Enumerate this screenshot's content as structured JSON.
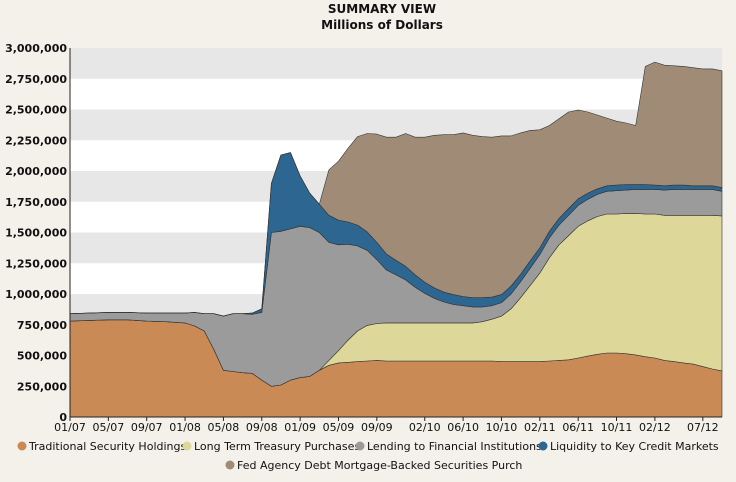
{
  "chart_data": {
    "type": "area",
    "stacked": true,
    "title": "SUMMARY VIEW",
    "subtitle": "Millions of Dollars",
    "x_tick_labels": [
      "01/07",
      "05/07",
      "09/07",
      "01/08",
      "05/08",
      "09/08",
      "01/09",
      "05/09",
      "09/09",
      "02/10",
      "06/10",
      "10/10",
      "02/11",
      "06/11",
      "10/11",
      "02/12",
      "07/12"
    ],
    "y_tick_labels": [
      "3,000,000",
      "2,750,000",
      "2,500,000",
      "2,250,000",
      "2,000,000",
      "1,750,000",
      "1,500,000",
      "1,250,000",
      "1,000,000",
      "750,000",
      "500,000",
      "250,000",
      "0"
    ],
    "ylim": [
      0,
      3000000
    ],
    "grid": true,
    "legend_position": "bottom",
    "colors": {
      "traditional": "#c98a55",
      "treasury": "#ddd79a",
      "lending": "#9b9b9b",
      "liquidity": "#2d6690",
      "agency": "#a08b77",
      "plot_band": "#e7e7e7",
      "background": "#f4f1ea"
    },
    "x_months": [
      "2007-01",
      "2007-03",
      "2007-05",
      "2007-07",
      "2007-09",
      "2007-11",
      "2008-01",
      "2008-02",
      "2008-03",
      "2008-04",
      "2008-05",
      "2008-06",
      "2008-07",
      "2008-08",
      "2008-09",
      "2008-10",
      "2008-11",
      "2008-12",
      "2009-01",
      "2009-02",
      "2009-03",
      "2009-04",
      "2009-05",
      "2009-06",
      "2009-07",
      "2009-08",
      "2009-09",
      "2009-10",
      "2009-11",
      "2009-12",
      "2010-01",
      "2010-02",
      "2010-03",
      "2010-04",
      "2010-05",
      "2010-06",
      "2010-07",
      "2010-08",
      "2010-09",
      "2010-10",
      "2010-11",
      "2010-12",
      "2011-01",
      "2011-02",
      "2011-03",
      "2011-04",
      "2011-05",
      "2011-06",
      "2011-07",
      "2011-08",
      "2011-09",
      "2011-10",
      "2011-11",
      "2011-12",
      "2012-01",
      "2012-02",
      "2012-03",
      "2012-04",
      "2012-05",
      "2012-06",
      "2012-07",
      "2012-08",
      "2012-09"
    ],
    "series": [
      {
        "name": "Traditional Security Holdings",
        "key": "traditional",
        "values": [
          780000,
          785000,
          790000,
          790000,
          780000,
          775000,
          765000,
          740000,
          700000,
          550000,
          380000,
          370000,
          360000,
          355000,
          300000,
          250000,
          260000,
          300000,
          320000,
          330000,
          380000,
          420000,
          440000,
          445000,
          450000,
          455000,
          460000,
          455000,
          455000,
          455000,
          455000,
          455000,
          455000,
          455000,
          455000,
          455000,
          455000,
          455000,
          455000,
          450000,
          450000,
          450000,
          450000,
          450000,
          455000,
          460000,
          465000,
          480000,
          495000,
          510000,
          520000,
          520000,
          515000,
          505000,
          490000,
          480000,
          460000,
          450000,
          440000,
          430000,
          410000,
          390000,
          375000
        ]
      },
      {
        "name": "Long Term Treasury Purchases",
        "key": "treasury",
        "values": [
          0,
          0,
          0,
          0,
          0,
          0,
          0,
          0,
          0,
          0,
          0,
          0,
          0,
          0,
          0,
          0,
          0,
          0,
          0,
          0,
          0,
          40000,
          100000,
          180000,
          250000,
          290000,
          300000,
          310000,
          310000,
          310000,
          310000,
          310000,
          310000,
          310000,
          310000,
          310000,
          310000,
          320000,
          340000,
          370000,
          430000,
          520000,
          620000,
          720000,
          840000,
          940000,
          1010000,
          1070000,
          1100000,
          1120000,
          1130000,
          1130000,
          1140000,
          1150000,
          1160000,
          1170000,
          1180000,
          1190000,
          1200000,
          1210000,
          1230000,
          1250000,
          1260000
        ]
      },
      {
        "name": "Lending to Financial Institutions",
        "key": "lending",
        "values": [
          60000,
          60000,
          60000,
          60000,
          65000,
          70000,
          80000,
          110000,
          140000,
          290000,
          440000,
          470000,
          480000,
          480000,
          550000,
          1250000,
          1250000,
          1230000,
          1230000,
          1210000,
          1120000,
          960000,
          860000,
          780000,
          690000,
          610000,
          520000,
          430000,
          390000,
          350000,
          290000,
          240000,
          200000,
          170000,
          150000,
          140000,
          130000,
          120000,
          110000,
          110000,
          120000,
          130000,
          140000,
          150000,
          160000,
          160000,
          165000,
          170000,
          175000,
          180000,
          185000,
          190000,
          190000,
          195000,
          200000,
          200000,
          205000,
          210000,
          210000,
          210000,
          210000,
          210000,
          200000
        ]
      },
      {
        "name": "Liquidity to Key Credit Markets",
        "key": "liquidity",
        "values": [
          0,
          0,
          0,
          0,
          0,
          0,
          0,
          0,
          0,
          0,
          0,
          0,
          0,
          10000,
          30000,
          400000,
          620000,
          620000,
          410000,
          280000,
          230000,
          220000,
          200000,
          180000,
          170000,
          150000,
          140000,
          130000,
          120000,
          110000,
          100000,
          90000,
          85000,
          80000,
          80000,
          75000,
          75000,
          75000,
          70000,
          65000,
          65000,
          60000,
          60000,
          55000,
          55000,
          55000,
          55000,
          55000,
          50000,
          45000,
          45000,
          45000,
          45000,
          40000,
          40000,
          35000,
          35000,
          35000,
          35000,
          30000,
          30000,
          30000,
          30000
        ]
      },
      {
        "name": "Fed Agency Debt  Mortgage-Backed Securities Purch",
        "key": "agency",
        "values": [
          0,
          0,
          0,
          0,
          0,
          0,
          0,
          0,
          0,
          0,
          0,
          0,
          0,
          0,
          0,
          0,
          0,
          0,
          0,
          0,
          0,
          370000,
          480000,
          600000,
          720000,
          800000,
          880000,
          950000,
          1000000,
          1080000,
          1120000,
          1180000,
          1240000,
          1280000,
          1300000,
          1330000,
          1320000,
          1310000,
          1300000,
          1290000,
          1220000,
          1150000,
          1060000,
          960000,
          860000,
          810000,
          785000,
          720000,
          660000,
          600000,
          550000,
          520000,
          500000,
          480000,
          960000,
          1000000,
          980000,
          970000,
          965000,
          960000,
          950000,
          950000,
          950000
        ]
      }
    ]
  }
}
